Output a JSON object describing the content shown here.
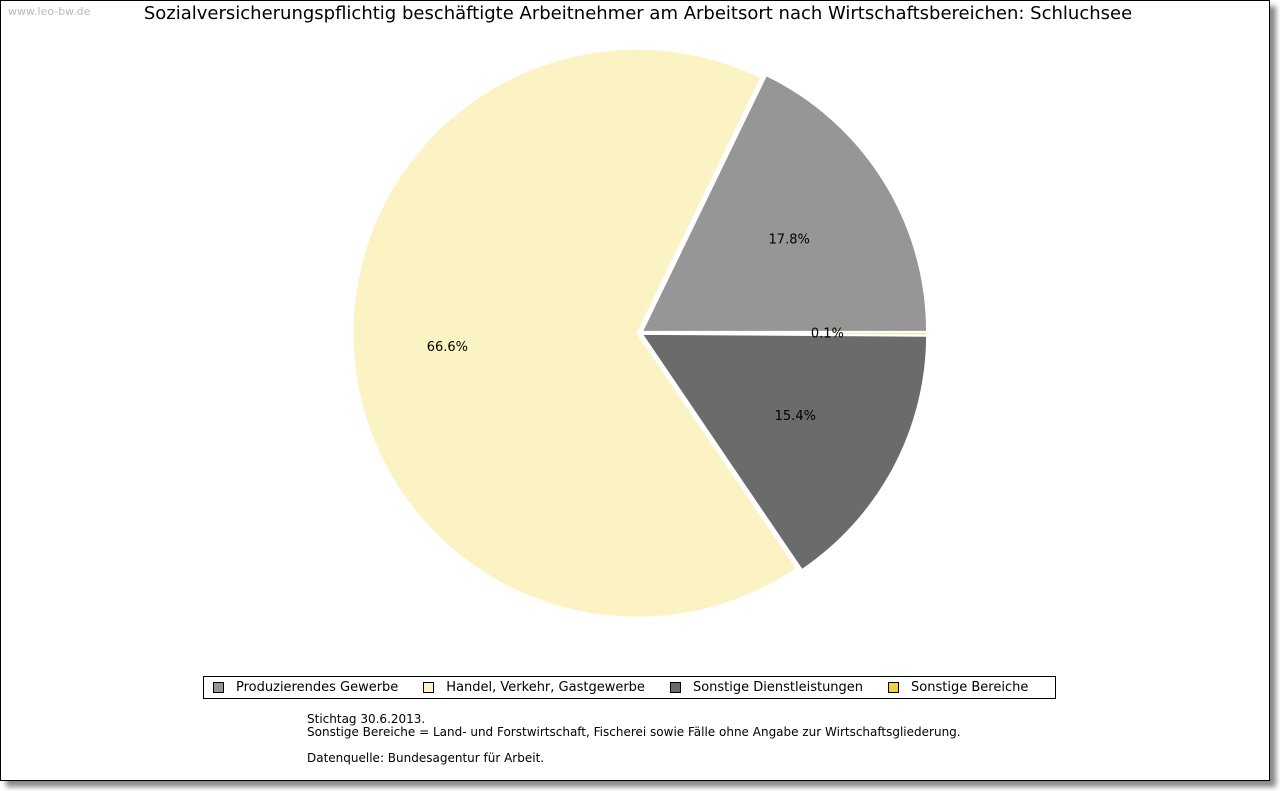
{
  "watermark": "www.leo-bw.de",
  "chart_data": {
    "type": "pie",
    "title": "Sozialversicherungspflichtig beschäftigte Arbeitnehmer am Arbeitsort nach Wirtschaftsbereichen: Schluchsee",
    "slices": [
      {
        "label": "Produzierendes Gewerbe",
        "value": 17.8,
        "value_label": "17.8%",
        "color": "#969696"
      },
      {
        "label": "Handel, Verkehr, Gastgewerbe",
        "value": 66.6,
        "value_label": "66.6%",
        "color": "#fcf3c5"
      },
      {
        "label": "Sonstige Dienstleistungen",
        "value": 15.4,
        "value_label": "15.4%",
        "color": "#6b6b6b"
      },
      {
        "label": "Sonstige Bereiche",
        "value": 0.1,
        "value_label": "0.1%",
        "color": "#f2d23a"
      }
    ],
    "direction": "counterclockwise",
    "legend_position": "bottom"
  },
  "notes": {
    "line1": "Stichtag 30.6.2013.",
    "line2": "Sonstige Bereiche = Land- und Forstwirtschaft, Fischerei sowie Fälle ohne Angabe zur Wirtschaftsgliederung.",
    "line3": "Datenquelle: Bundesagentur für Arbeit."
  }
}
